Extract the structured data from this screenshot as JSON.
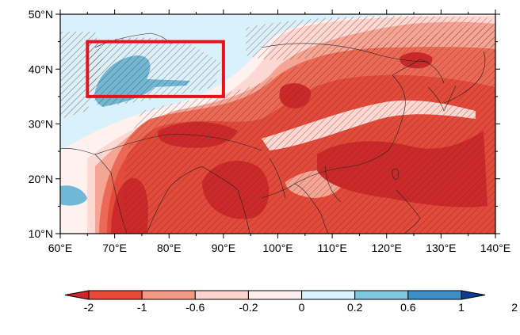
{
  "map": {
    "lat_ticks": [
      "10°N",
      "20°N",
      "30°N",
      "40°N",
      "50°N"
    ],
    "lon_ticks": [
      "60°E",
      "70°E",
      "80°E",
      "90°E",
      "100°E",
      "110°E",
      "120°E",
      "130°E",
      "140°E"
    ],
    "lat_range": [
      10,
      50
    ],
    "lon_range": [
      60,
      140
    ],
    "highlight_box": {
      "lon_min": 65,
      "lon_max": 90,
      "lat_min": 35,
      "lat_max": 45,
      "color": "#e8101a"
    }
  },
  "colorbar": {
    "labels": [
      "-2",
      "-1",
      "-0.6",
      "-0.2",
      "0",
      "0.2",
      "0.6",
      "1",
      "2"
    ],
    "colors": [
      "#d3242a",
      "#e64b3a",
      "#f39a86",
      "#fcd4cf",
      "#fdeeee",
      "#d9f2fb",
      "#7fc6df",
      "#3d8fc9",
      "#0b3d8f"
    ]
  },
  "palette": {
    "dark_red": "#cc2a2a",
    "red": "#e24a3a",
    "mid_red": "#ea6a55",
    "salmon": "#f4a594",
    "light_pink": "#fcd8d3",
    "very_light": "#fff1ee",
    "light_blue": "#d8f1fa",
    "blue": "#6fb8d6"
  }
}
